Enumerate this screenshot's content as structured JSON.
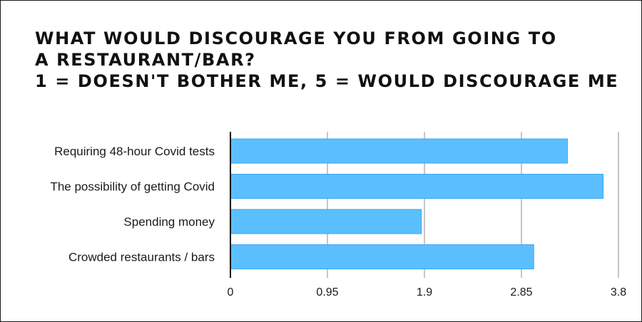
{
  "chart_data": {
    "type": "bar",
    "orientation": "horizontal",
    "title_lines": [
      "WHAT WOULD DISCOURAGE YOU FROM GOING TO",
      "A RESTAURANT/BAR?",
      "1 = DOESN'T BOTHER ME,  5 = WOULD DISCOURAGE ME"
    ],
    "categories": [
      "Requiring 48-hour Covid tests",
      "The possibility of getting Covid",
      "Spending money",
      "Crowded restaurants / bars"
    ],
    "values": [
      3.3,
      3.65,
      1.87,
      2.97
    ],
    "xlim": [
      0,
      3.8
    ],
    "xticks": [
      "0",
      "0.95",
      "1.9",
      "2.85",
      "3.8"
    ],
    "grid": true,
    "legend": "none",
    "bar_color": "#5bbfff",
    "bar_edge_color": "#3aa6ef",
    "grid_color": "#b4b4b4"
  }
}
